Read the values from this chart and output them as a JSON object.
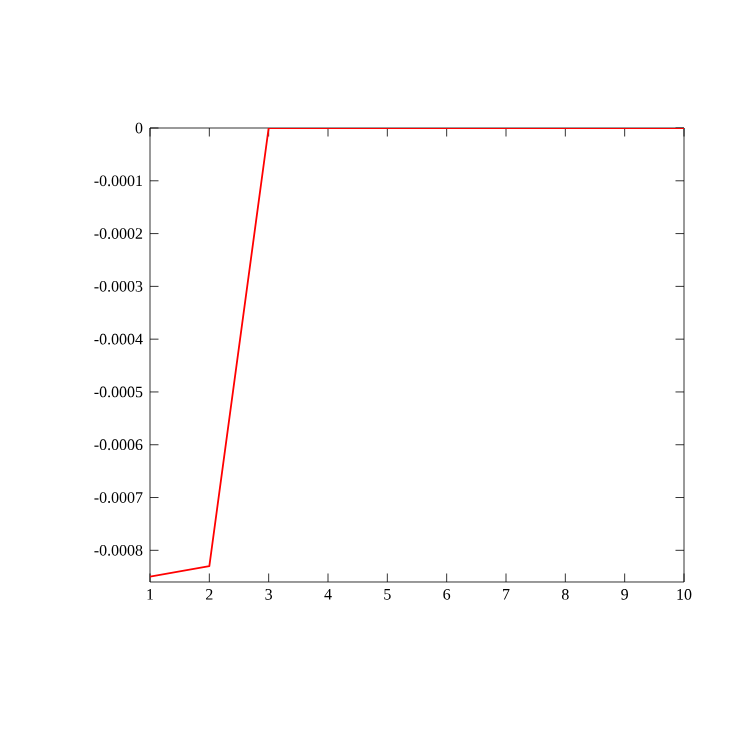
{
  "chart_data": {
    "type": "line",
    "x": [
      1,
      2,
      3,
      4,
      5,
      6,
      7,
      8,
      9,
      10
    ],
    "series": [
      {
        "color": "#ff0000",
        "values": [
          -0.00085,
          -0.00083,
          0,
          0,
          0,
          0,
          0,
          0,
          0,
          0
        ]
      }
    ],
    "xlim": [
      1,
      10
    ],
    "ylim": [
      -0.00086,
      0
    ],
    "xticks": [
      1,
      2,
      3,
      4,
      5,
      6,
      7,
      8,
      9,
      10
    ],
    "yticks": [
      0,
      -0.0001,
      -0.0002,
      -0.0003,
      -0.0004,
      -0.0005,
      -0.0006,
      -0.0007,
      -0.0008
    ],
    "grid": false,
    "marker": "none",
    "line_style": "solid"
  }
}
